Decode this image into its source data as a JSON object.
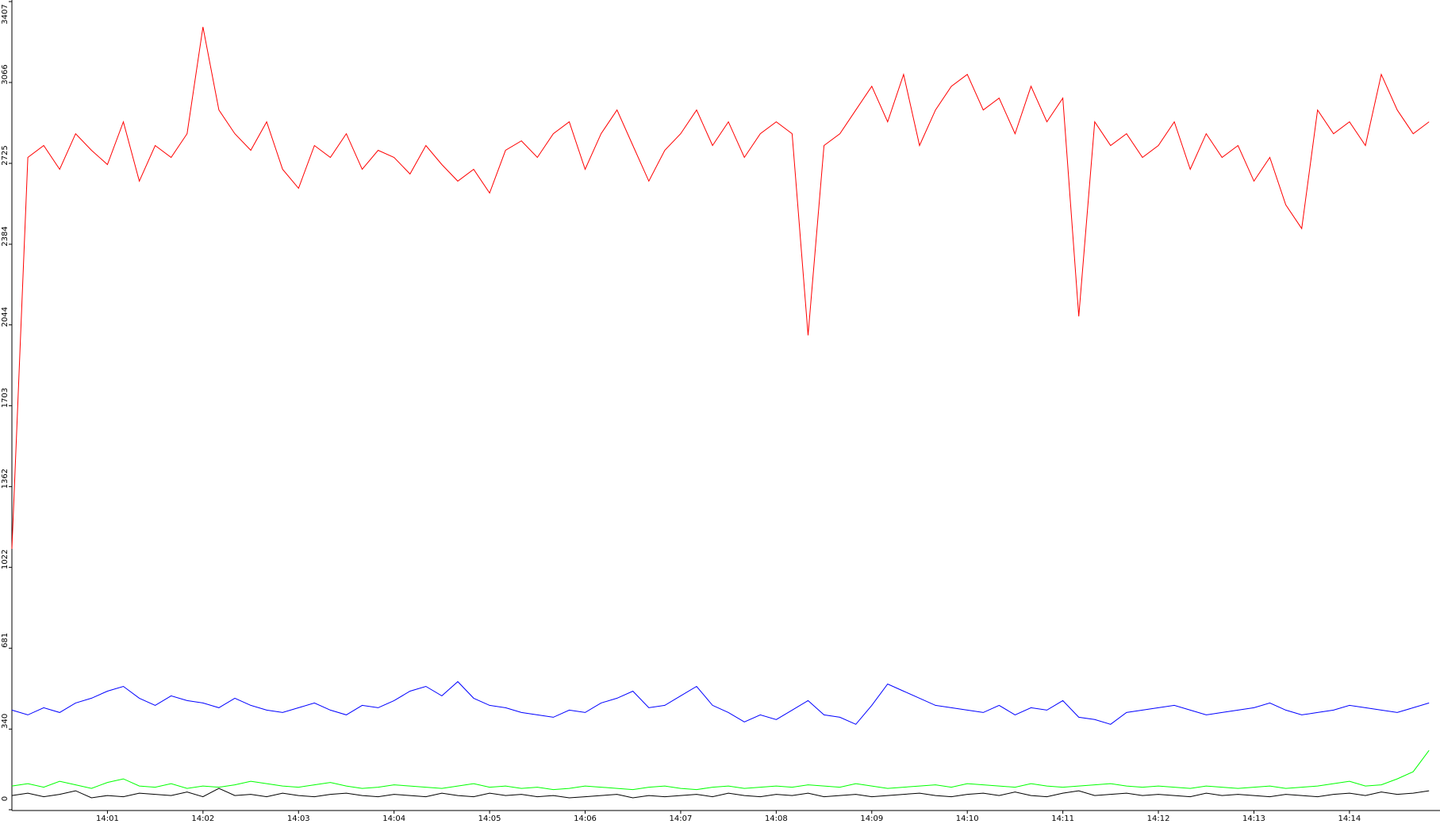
{
  "chart_data": {
    "type": "line",
    "categories": [
      null,
      null,
      null,
      null,
      null,
      null,
      "14:01",
      null,
      null,
      null,
      null,
      null,
      "14:02",
      null,
      null,
      null,
      null,
      null,
      "14:03",
      null,
      null,
      null,
      null,
      null,
      "14:04",
      null,
      null,
      null,
      null,
      null,
      "14:05",
      null,
      null,
      null,
      null,
      null,
      "14:06",
      null,
      null,
      null,
      null,
      null,
      "14:07",
      null,
      null,
      null,
      null,
      null,
      "14:08",
      null,
      null,
      null,
      null,
      null,
      "14:09",
      null,
      null,
      null,
      null,
      null,
      "14:10",
      null,
      null,
      null,
      null,
      null,
      "14:11",
      null,
      null,
      null,
      null,
      null,
      "14:12",
      null,
      null,
      null,
      null,
      null,
      "14:13",
      null,
      null,
      null,
      null,
      null,
      "14:14",
      null,
      null,
      null,
      null,
      null
    ],
    "series": [
      {
        "color": "#ff0000",
        "values": [
          1100,
          2750,
          2800,
          2700,
          2850,
          2780,
          2720,
          2900,
          2650,
          2800,
          2750,
          2850,
          3300,
          2950,
          2850,
          2780,
          2900,
          2700,
          2620,
          2800,
          2750,
          2850,
          2700,
          2780,
          2750,
          2680,
          2800,
          2720,
          2650,
          2700,
          2600,
          2780,
          2820,
          2750,
          2850,
          2900,
          2700,
          2850,
          2950,
          2800,
          2650,
          2780,
          2850,
          2950,
          2800,
          2900,
          2750,
          2850,
          2900,
          2850,
          2000,
          2800,
          2850,
          2950,
          3050,
          2900,
          3100,
          2800,
          2950,
          3050,
          3100,
          2950,
          3000,
          2850,
          3050,
          2900,
          3000,
          2080,
          2900,
          2800,
          2850,
          2750,
          2800,
          2900,
          2700,
          2850,
          2750,
          2800,
          2650,
          2750,
          2550,
          2450,
          2950,
          2850,
          2900,
          2800,
          3100,
          2950,
          2850,
          2900
        ]
      },
      {
        "color": "#0000ff",
        "values": [
          420,
          400,
          430,
          410,
          450,
          470,
          500,
          520,
          470,
          440,
          480,
          460,
          450,
          430,
          470,
          440,
          420,
          410,
          430,
          450,
          420,
          400,
          440,
          430,
          460,
          500,
          520,
          480,
          540,
          470,
          440,
          430,
          410,
          400,
          390,
          420,
          410,
          450,
          470,
          500,
          430,
          440,
          480,
          520,
          440,
          410,
          370,
          400,
          380,
          420,
          460,
          400,
          390,
          360,
          440,
          530,
          500,
          470,
          440,
          430,
          420,
          410,
          440,
          400,
          430,
          420,
          460,
          390,
          380,
          360,
          410,
          420,
          430,
          440,
          420,
          400,
          410,
          420,
          430,
          450,
          420,
          400,
          410,
          420,
          440,
          430,
          420,
          410,
          430,
          450
        ]
      },
      {
        "color": "#00ff00",
        "values": [
          100,
          110,
          95,
          120,
          105,
          90,
          115,
          130,
          100,
          95,
          110,
          90,
          100,
          95,
          105,
          120,
          110,
          100,
          95,
          105,
          115,
          100,
          90,
          95,
          105,
          100,
          95,
          90,
          100,
          110,
          95,
          100,
          90,
          95,
          85,
          90,
          100,
          95,
          90,
          85,
          95,
          100,
          90,
          85,
          95,
          100,
          90,
          95,
          100,
          95,
          105,
          100,
          95,
          110,
          100,
          90,
          95,
          100,
          105,
          95,
          110,
          105,
          100,
          95,
          110,
          100,
          95,
          100,
          105,
          110,
          100,
          95,
          100,
          95,
          90,
          100,
          95,
          90,
          95,
          100,
          90,
          95,
          100,
          110,
          120,
          100,
          105,
          130,
          160,
          250
        ]
      },
      {
        "color": "#000000",
        "values": [
          60,
          70,
          55,
          65,
          80,
          50,
          60,
          55,
          70,
          65,
          60,
          75,
          55,
          90,
          60,
          65,
          55,
          70,
          60,
          55,
          65,
          70,
          60,
          55,
          65,
          60,
          55,
          70,
          60,
          55,
          70,
          60,
          65,
          55,
          60,
          50,
          55,
          60,
          65,
          50,
          60,
          55,
          60,
          65,
          55,
          70,
          60,
          55,
          65,
          60,
          70,
          55,
          60,
          65,
          55,
          60,
          65,
          70,
          60,
          55,
          65,
          70,
          60,
          75,
          60,
          55,
          70,
          80,
          60,
          65,
          70,
          60,
          65,
          60,
          55,
          70,
          60,
          65,
          60,
          55,
          65,
          60,
          55,
          65,
          70,
          60,
          75,
          65,
          70,
          80
        ]
      }
    ],
    "ylim": [
      0,
      3407
    ],
    "yticks": [
      0,
      340,
      681,
      1022,
      1362,
      1703,
      2044,
      2384,
      2725,
      3066,
      3407
    ]
  }
}
